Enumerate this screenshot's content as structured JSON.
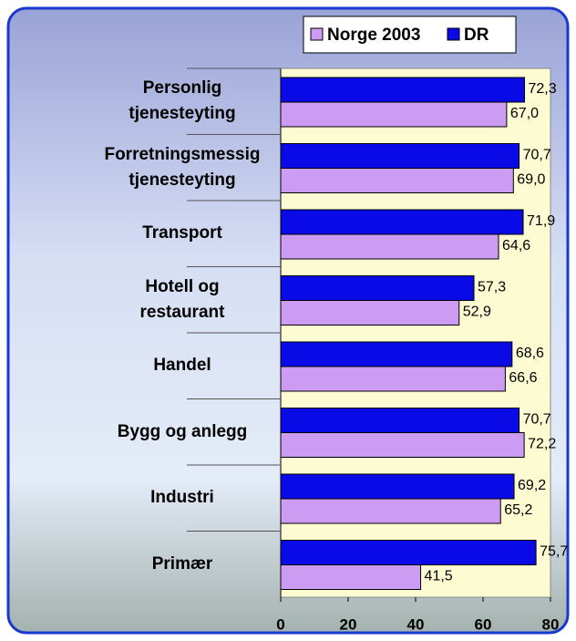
{
  "chart_data": {
    "type": "hbar",
    "categories": [
      "Personlig\ntjenesteyting",
      "Forretningsmessig\ntjenesteyting",
      "Transport",
      "Hotell og\nrestaurant",
      "Handel",
      "Bygg og anlegg",
      "Industri",
      "Primær"
    ],
    "series": [
      {
        "name": "Norge 2003",
        "color": "#cc9cf2",
        "values": [
          67.0,
          69.0,
          64.6,
          52.9,
          66.6,
          72.2,
          65.2,
          41.5
        ],
        "value_labels": [
          "67,0",
          "69,0",
          "64,6",
          "52,9",
          "66,6",
          "72,2",
          "65,2",
          "41,5"
        ]
      },
      {
        "name": "DR",
        "color": "#0a0ae6",
        "values": [
          72.3,
          70.7,
          71.9,
          57.3,
          68.6,
          70.7,
          69.2,
          75.7
        ],
        "value_labels": [
          "72,3",
          "70,7",
          "71,9",
          "57,3",
          "68,6",
          "70,7",
          "69,2",
          "75,7"
        ]
      }
    ],
    "xlim": [
      0,
      80
    ],
    "xticks": [
      0,
      20,
      40,
      60,
      80
    ]
  }
}
